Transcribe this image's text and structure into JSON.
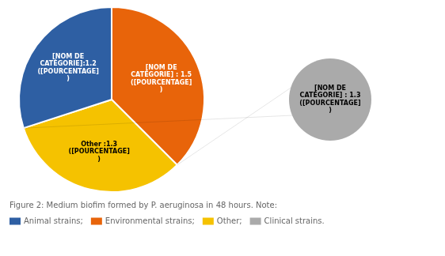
{
  "chart_data": {
    "type": "pie",
    "title": "Figure 2: Medium biofim formed by P. aeruginosa in 48 hours. Note:",
    "categories": [
      "[NOM DE\nCATÉGORIE] : 1.5\n([POURCENTAGE]\n)",
      "Other :1.3\n([POURCENTAGE]\n)",
      "[NOM DE\nCATÉGORIE]:1.2\n([POURCENTAGE]\n)"
    ],
    "values": [
      1.5,
      1.3,
      1.2
    ],
    "colors": [
      "#E8640A",
      "#F5C200",
      "#2E5FA3"
    ],
    "annotations": [
      {
        "text": "[NOM DE\nCATÉGORIE] : 1.3\n([POURCENTAGE]\n)",
        "color": "#AAAAAA"
      },
      {
        "text": "Animal strains;",
        "color": "#2E5FA3"
      },
      {
        "text": "Environmental strains;",
        "color": "#E8640A"
      },
      {
        "text": "Other;",
        "color": "#F5C200"
      },
      {
        "text": "Clinical strains.",
        "color": "#AAAAAA"
      }
    ]
  }
}
